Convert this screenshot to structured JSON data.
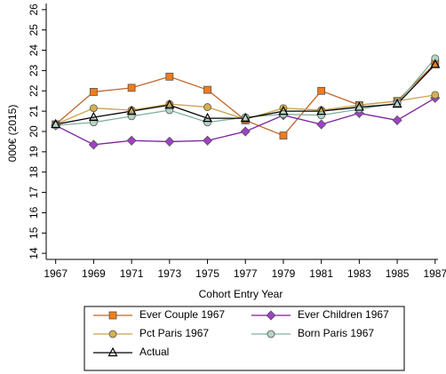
{
  "chart_data": {
    "type": "line",
    "x_label": "Cohort Entry Year",
    "y_label": "000€ (2015)",
    "x": [
      1967,
      1969,
      1971,
      1973,
      1975,
      1977,
      1979,
      1981,
      1983,
      1985,
      1987
    ],
    "xlim": [
      1966.5,
      1987.15
    ],
    "xticks": [
      1967,
      1969,
      1971,
      1973,
      1975,
      1977,
      1979,
      1981,
      1983,
      1985,
      1987
    ],
    "ylim": [
      13.7,
      26.3
    ],
    "yticks": [
      14,
      15,
      16,
      17,
      18,
      19,
      20,
      21,
      22,
      23,
      24,
      25,
      26
    ],
    "series": [
      {
        "name": "Ever Couple 1967",
        "color": "#c0652a",
        "marker": "square",
        "marker_color": "#f07c1c",
        "values": [
          20.35,
          21.95,
          22.15,
          22.7,
          22.05,
          20.55,
          19.8,
          22.0,
          21.3,
          21.5,
          23.35
        ]
      },
      {
        "name": "Ever Children 1967",
        "color": "#7a1f9e",
        "marker": "diamond",
        "marker_color": "#a040c8",
        "values": [
          20.3,
          19.35,
          19.55,
          19.5,
          19.55,
          20.0,
          20.8,
          20.35,
          20.9,
          20.55,
          21.65
        ]
      },
      {
        "name": "Pct Paris 1967",
        "color": "#c9a24e",
        "marker": "circle",
        "marker_color": "#d6b050",
        "values": [
          20.35,
          21.15,
          21.05,
          21.35,
          21.2,
          20.6,
          21.15,
          21.05,
          21.3,
          21.5,
          21.8
        ]
      },
      {
        "name": "Born Paris 1967",
        "color": "#7fb09a",
        "marker": "circle",
        "marker_color": "#b6d6c4",
        "values": [
          20.3,
          20.45,
          20.75,
          21.05,
          20.45,
          20.7,
          20.85,
          20.8,
          21.1,
          21.4,
          23.6
        ]
      },
      {
        "name": "Actual",
        "color": "#000000",
        "marker": "triangle",
        "marker_color": "none",
        "values": [
          20.35,
          20.7,
          21.0,
          21.3,
          20.65,
          20.65,
          21.0,
          21.0,
          21.2,
          21.35,
          23.3
        ]
      }
    ]
  }
}
